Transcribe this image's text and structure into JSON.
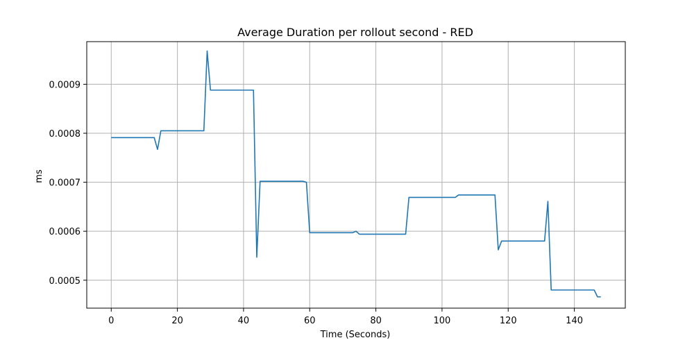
{
  "chart_data": {
    "type": "line",
    "title": "Average Duration per rollout second - RED",
    "xlabel": "Time (Seconds)",
    "ylabel": "ms",
    "xlim": [
      -7.4,
      155.4
    ],
    "ylim": [
      0.000443,
      0.000987
    ],
    "xticks": [
      0,
      20,
      40,
      60,
      80,
      100,
      120,
      140
    ],
    "yticks": [
      0.0005,
      0.0006,
      0.0007,
      0.0008,
      0.0009
    ],
    "xtick_labels": [
      "0",
      "20",
      "40",
      "60",
      "80",
      "100",
      "120",
      "140"
    ],
    "ytick_labels": [
      "0.0005",
      "0.0006",
      "0.0007",
      "0.0008",
      "0.0009"
    ],
    "grid": true,
    "color": "#1f77b4",
    "series": [
      {
        "x": [
          0,
          13,
          14,
          15,
          28,
          29,
          30,
          43,
          44,
          45,
          58,
          59,
          60,
          73,
          74,
          75,
          89,
          90,
          104,
          105,
          116,
          117,
          118,
          131,
          132,
          133,
          146,
          147,
          148
        ],
        "y": [
          0.000791,
          0.000791,
          0.000767,
          0.000805,
          0.000805,
          0.000968,
          0.000888,
          0.000888,
          0.000547,
          0.000702,
          0.000702,
          0.0007,
          0.000597,
          0.000597,
          0.0006,
          0.000594,
          0.000594,
          0.000669,
          0.000669,
          0.000674,
          0.000674,
          0.000562,
          0.00058,
          0.00058,
          0.000661,
          0.00048,
          0.00048,
          0.000466,
          0.000466
        ]
      }
    ]
  }
}
